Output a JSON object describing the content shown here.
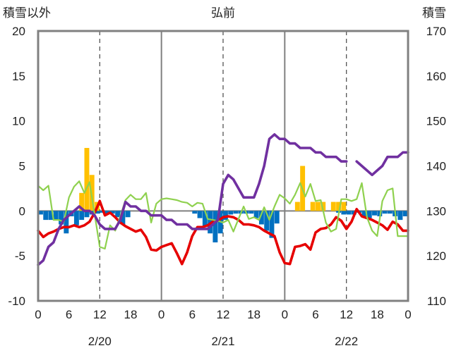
{
  "chart_data": {
    "type": "line",
    "title": "弘前",
    "left_axis_label": "積雪以外",
    "right_axis_label": "積雪",
    "left_ylim": [
      -10,
      20
    ],
    "left_yticks": [
      -10,
      -5,
      0,
      5,
      10,
      15,
      20
    ],
    "right_ylim": [
      110,
      170
    ],
    "right_yticks": [
      110,
      120,
      130,
      140,
      150,
      160,
      170
    ],
    "xlim": [
      0,
      72
    ],
    "hour_tick_labels": [
      "0",
      "6",
      "12",
      "18",
      "0",
      "6",
      "12",
      "18",
      "0",
      "6",
      "12",
      "18",
      "0"
    ],
    "date_labels": [
      {
        "hour": 12,
        "label": "2/20"
      },
      {
        "hour": 36,
        "label": "2/21"
      },
      {
        "hour": 60,
        "label": "2/22"
      }
    ],
    "day_boundaries": [
      24,
      48
    ],
    "noon_lines": [
      12,
      36,
      60
    ],
    "grid": true,
    "series": [
      {
        "key": "temperature",
        "axis": "left",
        "color": "#e60000",
        "x": [
          0,
          1,
          2,
          3,
          4,
          5,
          6,
          7,
          8,
          9,
          10,
          11,
          12,
          13,
          14,
          15,
          16,
          17,
          18,
          19,
          20,
          21,
          22,
          23,
          24,
          25,
          26,
          27,
          28,
          29,
          30,
          31,
          32,
          33,
          34,
          35,
          36,
          37,
          38,
          39,
          40,
          41,
          42,
          43,
          44,
          45,
          46,
          47,
          48,
          49,
          50,
          51,
          52,
          53,
          54,
          55,
          56,
          57,
          58,
          59,
          60,
          61,
          62,
          63,
          64,
          65,
          66,
          67,
          68,
          69,
          70,
          71,
          72
        ],
        "y": [
          -2.2,
          -2.9,
          -2.5,
          -2.3,
          -2.0,
          -1.8,
          -1.8,
          -1.6,
          -1.8,
          -1.6,
          -1.2,
          -0.2,
          1.1,
          -0.5,
          -0.2,
          -0.7,
          -1.3,
          -1.7,
          -2.0,
          -2.3,
          -2.1,
          -2.9,
          -4.3,
          -4.4,
          -4.0,
          -3.8,
          -3.6,
          -4.7,
          -5.9,
          -4.6,
          -2.8,
          -1.8,
          -1.8,
          -1.6,
          -1.2,
          -1.1,
          -0.7,
          -0.6,
          -0.7,
          -1.0,
          -1.5,
          -1.5,
          -1.6,
          -1.8,
          -2.2,
          -2.5,
          -2.8,
          -4.6,
          -5.8,
          -5.9,
          -4.0,
          -3.9,
          -3.7,
          -4.3,
          -2.4,
          -2.0,
          -1.9,
          -1.5,
          -0.7,
          -1.1,
          -2.0,
          -1.2,
          0.2,
          -0.6,
          -0.8,
          -1.0,
          -1.3,
          -1.6,
          -2.1,
          -1.2,
          -1.5,
          -2.2,
          -2.2
        ]
      },
      {
        "key": "sunshine-humidity",
        "axis": "left",
        "color": "#8fd14f",
        "x": [
          0,
          1,
          2,
          3,
          4,
          5,
          6,
          7,
          8,
          9,
          10,
          11,
          12,
          13,
          14,
          15,
          16,
          17,
          18,
          19,
          20,
          21,
          22,
          23,
          24,
          25,
          26,
          27,
          28,
          29,
          30,
          31,
          32,
          33,
          34,
          35,
          36,
          37,
          38,
          39,
          40,
          41,
          42,
          43,
          44,
          45,
          46,
          47,
          48,
          49,
          50,
          51,
          52,
          53,
          54,
          55,
          56,
          57,
          58,
          59,
          60,
          61,
          62,
          63,
          64,
          65,
          66,
          67,
          68,
          69,
          70,
          71,
          72
        ],
        "y": [
          2.8,
          2.3,
          2.8,
          -1.0,
          -1.0,
          -1.2,
          1.5,
          2.7,
          3.3,
          2.0,
          3.2,
          -0.4,
          -4.0,
          -4.2,
          -1.6,
          -2.2,
          -0.6,
          1.2,
          1.8,
          1.3,
          1.3,
          2.0,
          -1.3,
          0.8,
          1.3,
          1.4,
          1.3,
          1.2,
          1.0,
          0.9,
          0.5,
          0.9,
          0.8,
          -0.9,
          -1.0,
          -1.1,
          -1.3,
          -1.0,
          -2.3,
          -0.9,
          0.5,
          -0.9,
          -0.7,
          -1.0,
          0.4,
          -1.0,
          0.5,
          1.8,
          1.4,
          0.8,
          1.8,
          3.1,
          1.6,
          3.0,
          1.1,
          1.2,
          -1.3,
          -2.3,
          -2.0,
          1.3,
          1.3,
          1.1,
          1.3,
          3.1,
          -0.7,
          -2.2,
          -2.8,
          1.1,
          2.3,
          2.5,
          -2.8,
          -2.8,
          -2.8
        ]
      },
      {
        "key": "snow-depth",
        "axis": "right",
        "color": "#7030a0",
        "segments": [
          {
            "x": [
              0,
              1,
              2,
              3,
              4,
              5,
              6,
              7,
              8,
              9,
              10,
              11,
              12,
              13,
              14,
              15,
              16,
              17,
              18,
              19,
              20,
              21,
              22,
              23,
              24,
              25,
              26,
              27,
              28,
              29,
              30,
              31,
              32,
              33,
              34,
              35,
              36,
              37,
              38,
              39,
              40,
              41,
              42,
              43,
              44,
              45,
              46,
              47,
              48,
              49,
              50,
              51,
              52,
              53,
              54,
              55,
              56,
              57,
              58,
              59,
              60
            ],
            "y": [
              118,
              119,
              122,
              123,
              126,
              128,
              129,
              130,
              131,
              130,
              130,
              129,
              127,
              126,
              126,
              126,
              128,
              132,
              131,
              131,
              130,
              130,
              129,
              129,
              129,
              128,
              128,
              127,
              127,
              127,
              126,
              126,
              126,
              126,
              127,
              128,
              136,
              138,
              137,
              135,
              133,
              133,
              133,
              136,
              140,
              146,
              147,
              146,
              146,
              145,
              145,
              144,
              144,
              144,
              143,
              143,
              142,
              142,
              142,
              141,
              141
            ]
          },
          {
            "x": [
              62,
              63,
              64,
              65,
              66,
              67,
              68,
              69,
              70,
              71,
              72
            ],
            "y": [
              141,
              140,
              139,
              138,
              139,
              140,
              142,
              142,
              142,
              143,
              143
            ]
          }
        ]
      }
    ],
    "bars": [
      {
        "key": "precipitation",
        "axis": "left",
        "color": "#ffc000",
        "x": [
          8,
          9,
          10,
          11,
          50,
          51,
          53,
          54,
          55,
          57,
          58,
          59
        ],
        "y": [
          2,
          7,
          4,
          1,
          1,
          5,
          1,
          1,
          1,
          1,
          1,
          1
        ]
      },
      {
        "key": "wind-deficit",
        "axis": "left",
        "color": "#0070c0",
        "x": [
          0,
          1,
          2,
          3,
          4,
          5,
          6,
          7,
          8,
          9,
          10,
          11,
          12,
          13,
          14,
          15,
          16,
          17,
          30,
          31,
          32,
          33,
          34,
          35,
          36,
          37,
          38,
          39,
          40,
          41,
          42,
          43,
          44,
          45,
          46,
          58,
          59,
          60,
          61,
          62,
          63,
          64,
          65,
          66,
          67,
          68,
          69,
          70,
          71
        ],
        "y": [
          -0.4,
          -1.0,
          -1.0,
          -1.0,
          -1.5,
          -2.5,
          -0.6,
          -1.6,
          -1.0,
          -0.7,
          -0.4,
          -0.3,
          -0.2,
          -0.3,
          -0.3,
          -0.7,
          -1.5,
          -0.7,
          -0.3,
          -0.8,
          -1.8,
          -2.5,
          -3.5,
          -2.5,
          -1.0,
          -0.4,
          -0.3,
          -0.3,
          -0.3,
          -0.3,
          -0.8,
          -1.5,
          -2.2,
          -3.0,
          -1.4,
          -0.2,
          -0.4,
          -0.4,
          -0.4,
          -0.2,
          -0.7,
          -0.8,
          -0.5,
          -0.6,
          -0.3,
          -0.3,
          -0.6,
          -1.0,
          -0.6
        ]
      }
    ]
  }
}
